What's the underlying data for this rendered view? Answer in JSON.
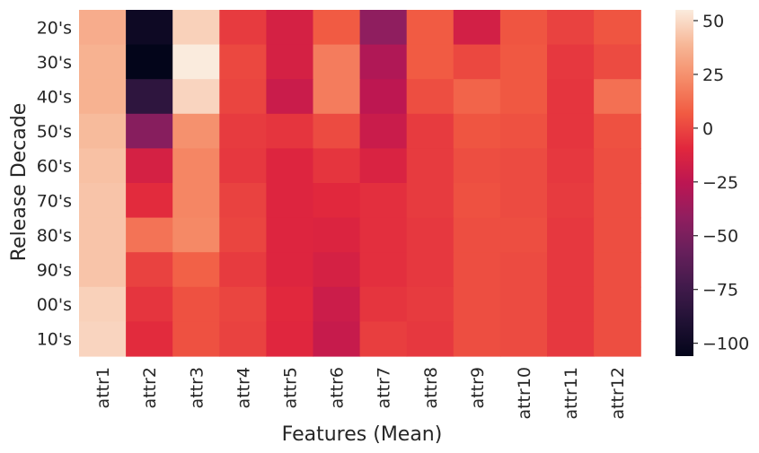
{
  "chart_data": {
    "type": "heatmap",
    "title": "",
    "xlabel": "Features (Mean)",
    "ylabel": "Release Decade",
    "x_categories": [
      "attr1",
      "attr2",
      "attr3",
      "attr4",
      "attr5",
      "attr6",
      "attr7",
      "attr8",
      "attr9",
      "attr10",
      "attr11",
      "attr12"
    ],
    "y_categories": [
      "20's",
      "30's",
      "40's",
      "50's",
      "60's",
      "70's",
      "80's",
      "90's",
      "00's",
      "10's"
    ],
    "values": [
      [
        35,
        -100,
        47,
        -3,
        -15,
        7,
        -42,
        7,
        -16,
        5,
        -1,
        5
      ],
      [
        37,
        -106,
        55,
        1,
        -15,
        18,
        -30,
        7,
        1,
        6,
        -4,
        2
      ],
      [
        37,
        -83,
        48,
        0,
        -20,
        18,
        -25,
        3,
        10,
        6,
        -5,
        14
      ],
      [
        40,
        -45,
        25,
        -3,
        -5,
        2,
        -20,
        -3,
        5,
        4,
        -5,
        4
      ],
      [
        42,
        -15,
        21,
        -4,
        -11,
        -5,
        -13,
        -3,
        3,
        2,
        -4,
        3
      ],
      [
        43,
        -8,
        21,
        -1,
        -11,
        -9,
        -7,
        -3,
        4,
        2,
        -3,
        3
      ],
      [
        43,
        15,
        22,
        0,
        -11,
        -12,
        -7,
        -4,
        3,
        3,
        -4,
        3
      ],
      [
        43,
        -1,
        9,
        -3,
        -11,
        -15,
        -7,
        -4,
        3,
        2,
        -4,
        3
      ],
      [
        47,
        -5,
        4,
        0,
        -9,
        -19,
        -5,
        -3,
        3,
        2,
        -4,
        3
      ],
      [
        48,
        -8,
        4,
        -1,
        -10,
        -21,
        -2,
        -4,
        3,
        2,
        -4,
        3
      ]
    ],
    "vmin": -106,
    "vmax": 55,
    "colorbar_ticks": [
      50,
      25,
      0,
      -25,
      -50,
      -75,
      -100
    ],
    "colorbar_labels": [
      "50",
      "25",
      "0",
      "−25",
      "−50",
      "−75",
      "−100"
    ],
    "colormap": "rocket",
    "grid": false,
    "legend": "colorbar-right"
  }
}
